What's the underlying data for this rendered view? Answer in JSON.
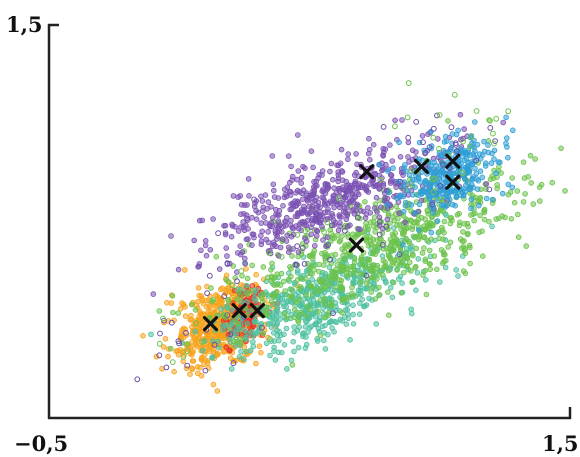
{
  "chart_data": {
    "type": "scatter",
    "title": "",
    "xlabel": "",
    "ylabel": "",
    "xlim": [
      -0.5,
      1.5
    ],
    "ylim": [
      0,
      1.5
    ],
    "x_tick_labels": [
      {
        "value": -0.5,
        "label": "−0,5"
      },
      {
        "value": 1.5,
        "label": "1,5"
      }
    ],
    "y_tick_labels": [
      {
        "value": 1.5,
        "label": "1,5"
      }
    ],
    "grid": false,
    "legend": "none",
    "clusters": [
      {
        "color": "#f7a21b",
        "center": [
          0.16,
          0.35
        ],
        "spread": [
          0.09,
          0.075
        ],
        "count": 520,
        "dense": true
      },
      {
        "color": "#e8332a",
        "center": [
          0.26,
          0.4
        ],
        "spread": [
          0.035,
          0.05
        ],
        "count": 110,
        "dense": true
      },
      {
        "color": "#4cc0a0",
        "center": [
          0.52,
          0.45
        ],
        "spread": [
          0.2,
          0.075
        ],
        "count": 520,
        "dense": true
      },
      {
        "color": "#6cc24a",
        "center": [
          0.77,
          0.66
        ],
        "spread": [
          0.3,
          0.1
        ],
        "count": 680,
        "dense": true
      },
      {
        "color": "#7b52b3",
        "center": [
          0.58,
          0.84
        ],
        "spread": [
          0.22,
          0.075
        ],
        "count": 560,
        "dense": true
      },
      {
        "color": "#2f9ed6",
        "center": [
          1.03,
          0.92
        ],
        "spread": [
          0.09,
          0.07
        ],
        "count": 320,
        "dense": true
      }
    ],
    "outliers": [
      {
        "color": "#6a4fa8",
        "count": 70
      },
      {
        "color": "#6cc24a",
        "count": 60
      }
    ],
    "centroids": [
      {
        "x": 0.12,
        "y": 0.36
      },
      {
        "x": 0.23,
        "y": 0.41
      },
      {
        "x": 0.3,
        "y": 0.41
      },
      {
        "x": 0.68,
        "y": 0.66
      },
      {
        "x": 0.72,
        "y": 0.94
      },
      {
        "x": 0.93,
        "y": 0.96
      },
      {
        "x": 1.05,
        "y": 0.98
      },
      {
        "x": 1.05,
        "y": 0.9
      }
    ],
    "centroid_color": "#111111"
  }
}
